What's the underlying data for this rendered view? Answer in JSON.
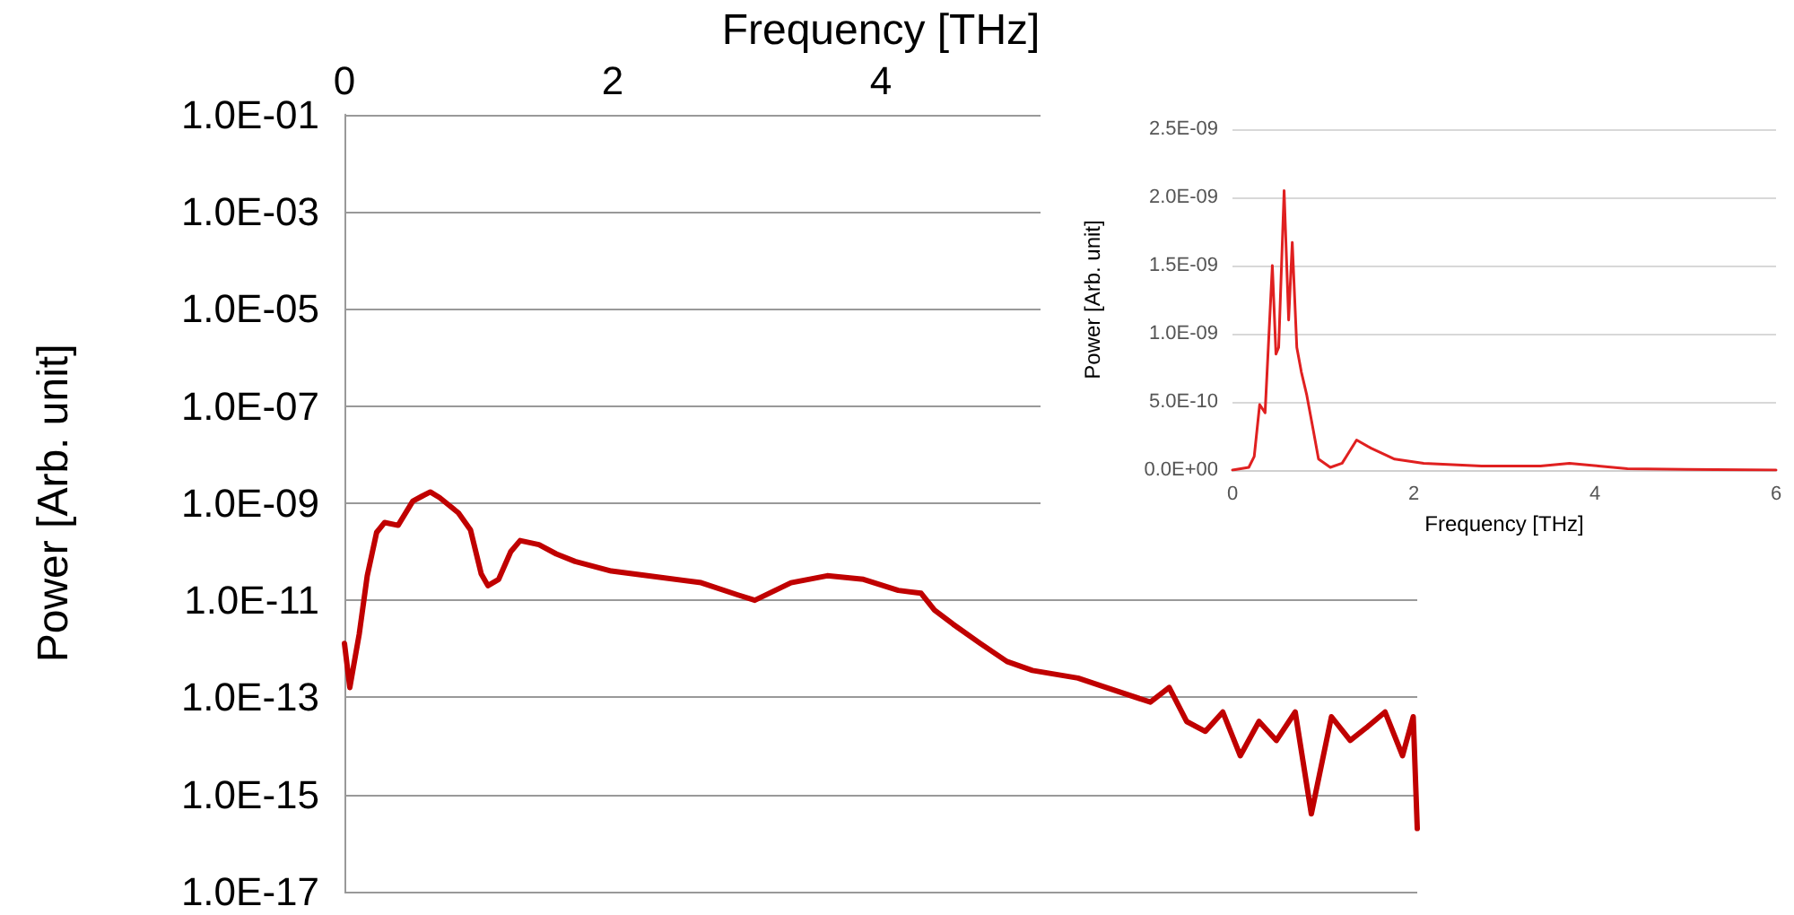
{
  "chart_data": [
    {
      "type": "line",
      "xlabel": "Frequency [THz]",
      "ylabel": "Power [Arb. unit]",
      "log": "y",
      "grid": "y",
      "marker": "none",
      "line_style": "solid",
      "xlim": [
        0,
        8
      ],
      "xticks": [
        0,
        2,
        4
      ],
      "ylim": [
        1e-17,
        0.1
      ],
      "yticks": [
        {
          "value": 0.1,
          "label": "1.0E-01"
        },
        {
          "value": 0.001,
          "label": "1.0E-03"
        },
        {
          "value": 1e-05,
          "label": "1.0E-05"
        },
        {
          "value": 1e-07,
          "label": "1.0E-07"
        },
        {
          "value": 1e-09,
          "label": "1.0E-09"
        },
        {
          "value": 1e-11,
          "label": "1.0E-11"
        },
        {
          "value": 1e-13,
          "label": "1.0E-13"
        },
        {
          "value": 1e-15,
          "label": "1.0E-15"
        },
        {
          "value": 1e-17,
          "label": "1.0E-17"
        }
      ],
      "series": [
        {
          "color": "#c00000",
          "x": [
            0,
            0.04,
            0.11,
            0.17,
            0.24,
            0.3,
            0.4,
            0.51,
            0.58,
            0.64,
            0.71,
            0.85,
            0.94,
            1.02,
            1.07,
            1.15,
            1.24,
            1.31,
            1.45,
            1.58,
            1.72,
            1.99,
            2.26,
            2.66,
            2.93,
            3.06,
            3.33,
            3.6,
            3.87,
            4.13,
            4.3,
            4.4,
            4.54,
            4.74,
            4.94,
            5.13,
            5.47,
            5.68,
            6.01,
            6.15,
            6.28,
            6.42,
            6.55,
            6.68,
            6.82,
            6.95,
            7.09,
            7.21,
            7.36,
            7.5,
            7.63,
            7.76,
            7.89,
            7.97,
            8.0
          ],
          "values": [
            1.3e-12,
            1.6e-13,
            2e-12,
            3.2e-11,
            2.5e-10,
            4e-10,
            3.5e-10,
            1.1e-09,
            1.4e-09,
            1.7e-09,
            1.3e-09,
            6.3e-10,
            2.8e-10,
            3.5e-11,
            2e-11,
            2.7e-11,
            1e-10,
            1.7e-10,
            1.4e-10,
            9e-11,
            6.3e-11,
            4e-11,
            3.2e-11,
            2.3e-11,
            1.3e-11,
            1e-11,
            2.3e-11,
            3.2e-11,
            2.7e-11,
            1.6e-11,
            1.4e-11,
            6.3e-12,
            3.2e-12,
            1.3e-12,
            5.5e-13,
            3.6e-13,
            2.5e-13,
            1.6e-13,
            8e-14,
            1.6e-13,
            3.2e-14,
            2e-14,
            5e-14,
            6.3e-15,
            3.2e-14,
            1.3e-14,
            5e-14,
            4e-16,
            4e-14,
            1.3e-14,
            2.5e-14,
            5e-14,
            6.3e-15,
            4e-14,
            2e-16
          ]
        }
      ]
    },
    {
      "type": "line",
      "xlabel": "Frequency [THz]",
      "ylabel": "Power [Arb. unit]",
      "grid": "y",
      "marker": "none",
      "line_style": "solid",
      "xlim": [
        0,
        6
      ],
      "xticks": [
        0,
        2,
        4,
        6
      ],
      "ylim": [
        0,
        2.5e-09
      ],
      "yticks": [
        {
          "value": 0,
          "label": "0.0E+00"
        },
        {
          "value": 5e-10,
          "label": "5.0E-10"
        },
        {
          "value": 1e-09,
          "label": "1.0E-09"
        },
        {
          "value": 1.5e-09,
          "label": "1.5E-09"
        },
        {
          "value": 2e-09,
          "label": "2.0E-09"
        },
        {
          "value": 2.5e-09,
          "label": "2.5E-09"
        }
      ],
      "series": [
        {
          "color": "#e02020",
          "x": [
            0,
            0.18,
            0.24,
            0.3,
            0.36,
            0.44,
            0.48,
            0.51,
            0.57,
            0.62,
            0.66,
            0.71,
            0.76,
            0.82,
            0.89,
            0.95,
            1.08,
            1.21,
            1.37,
            1.53,
            1.79,
            2.11,
            2.75,
            3.4,
            3.72,
            4.04,
            4.36,
            5.0,
            6.0
          ],
          "values": [
            0,
            2e-11,
            1e-10,
            4.8e-10,
            4.2e-10,
            1.5e-09,
            8.5e-10,
            9e-10,
            2.05e-09,
            1.1e-09,
            1.67e-09,
            9e-10,
            7.2e-10,
            5.5e-10,
            3e-10,
            8e-11,
            2e-11,
            5e-11,
            2.2e-10,
            1.6e-10,
            8e-11,
            5e-11,
            3e-11,
            3e-11,
            5e-11,
            3e-11,
            1e-11,
            5e-12,
            0
          ]
        }
      ]
    }
  ]
}
